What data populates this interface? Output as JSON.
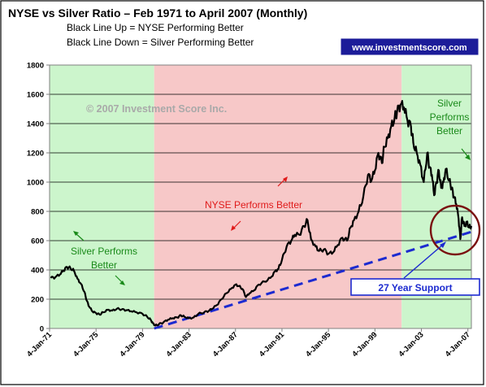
{
  "chart_data": {
    "type": "line",
    "title": "NYSE vs Silver Ratio – Feb 1971 to April 2007 (Monthly)",
    "subtitle_lines": [
      "Black Line Up = NYSE Performing Better",
      "Black Line Down = Silver Performing Better"
    ],
    "brand": "www.investmentscore.com",
    "copyright": "© 2007 Investment Score Inc.",
    "x_start_year": 1971,
    "x_end_year": 2007.3,
    "x_tick_labels": [
      "4-Jan-71",
      "4-Jan-75",
      "4-Jan-79",
      "4-Jan-83",
      "4-Jan-87",
      "4-Jan-91",
      "4-Jan-95",
      "4-Jan-99",
      "4-Jan-03",
      "4-Jan-07"
    ],
    "x_tick_years": [
      1971,
      1975,
      1979,
      1983,
      1987,
      1991,
      1995,
      1999,
      2003,
      2007
    ],
    "ylim": [
      0,
      1800
    ],
    "y_ticks": [
      0,
      200,
      400,
      600,
      800,
      1000,
      1200,
      1400,
      1600,
      1800
    ],
    "grid": true,
    "series": [
      {
        "color": "#000000",
        "points": [
          [
            1971.1,
            345
          ],
          [
            1971.5,
            350
          ],
          [
            1971.9,
            370
          ],
          [
            1972.2,
            395
          ],
          [
            1972.5,
            420
          ],
          [
            1972.8,
            412
          ],
          [
            1973.1,
            395
          ],
          [
            1973.4,
            340
          ],
          [
            1973.7,
            305
          ],
          [
            1974.0,
            250
          ],
          [
            1974.2,
            190
          ],
          [
            1974.4,
            150
          ],
          [
            1974.7,
            115
          ],
          [
            1975.0,
            105
          ],
          [
            1975.3,
            95
          ],
          [
            1975.6,
            110
          ],
          [
            1976.0,
            128
          ],
          [
            1976.4,
            122
          ],
          [
            1976.8,
            135
          ],
          [
            1977.2,
            130
          ],
          [
            1977.6,
            125
          ],
          [
            1978.0,
            118
          ],
          [
            1978.5,
            110
          ],
          [
            1979.0,
            100
          ],
          [
            1979.4,
            80
          ],
          [
            1979.7,
            60
          ],
          [
            1979.9,
            35
          ],
          [
            1980.1,
            20
          ],
          [
            1980.4,
            28
          ],
          [
            1980.8,
            42
          ],
          [
            1981.2,
            60
          ],
          [
            1981.6,
            70
          ],
          [
            1982.0,
            75
          ],
          [
            1982.3,
            90
          ],
          [
            1982.6,
            80
          ],
          [
            1983.0,
            70
          ],
          [
            1983.4,
            75
          ],
          [
            1983.8,
            100
          ],
          [
            1984.3,
            110
          ],
          [
            1984.7,
            120
          ],
          [
            1985.0,
            135
          ],
          [
            1985.4,
            160
          ],
          [
            1985.8,
            200
          ],
          [
            1986.2,
            240
          ],
          [
            1986.6,
            270
          ],
          [
            1987.0,
            300
          ],
          [
            1987.3,
            290
          ],
          [
            1987.6,
            270
          ],
          [
            1987.9,
            215
          ],
          [
            1988.2,
            240
          ],
          [
            1988.6,
            260
          ],
          [
            1989.0,
            300
          ],
          [
            1989.5,
            320
          ],
          [
            1990.0,
            345
          ],
          [
            1990.4,
            390
          ],
          [
            1990.7,
            410
          ],
          [
            1991.0,
            470
          ],
          [
            1991.4,
            560
          ],
          [
            1991.8,
            600
          ],
          [
            1992.1,
            640
          ],
          [
            1992.5,
            640
          ],
          [
            1992.9,
            700
          ],
          [
            1993.2,
            740
          ],
          [
            1993.5,
            610
          ],
          [
            1993.9,
            560
          ],
          [
            1994.2,
            530
          ],
          [
            1994.6,
            540
          ],
          [
            1995.0,
            510
          ],
          [
            1995.4,
            520
          ],
          [
            1995.8,
            570
          ],
          [
            1996.2,
            620
          ],
          [
            1996.6,
            600
          ],
          [
            1996.9,
            690
          ],
          [
            1997.2,
            740
          ],
          [
            1997.6,
            800
          ],
          [
            1998.0,
            900
          ],
          [
            1998.4,
            1050
          ],
          [
            1998.7,
            1010
          ],
          [
            1999.0,
            1080
          ],
          [
            1999.3,
            1200
          ],
          [
            1999.6,
            1130
          ],
          [
            1999.8,
            1240
          ],
          [
            2000.1,
            1300
          ],
          [
            2000.4,
            1380
          ],
          [
            2000.7,
            1440
          ],
          [
            2000.9,
            1480
          ],
          [
            2001.2,
            1530
          ],
          [
            2001.5,
            1510
          ],
          [
            2001.8,
            1420
          ],
          [
            2002.1,
            1380
          ],
          [
            2002.3,
            1270
          ],
          [
            2002.6,
            1200
          ],
          [
            2002.9,
            1120
          ],
          [
            2003.2,
            1000
          ],
          [
            2003.5,
            1200
          ],
          [
            2003.7,
            1100
          ],
          [
            2003.9,
            1050
          ],
          [
            2004.1,
            910
          ],
          [
            2004.3,
            1000
          ],
          [
            2004.5,
            1080
          ],
          [
            2004.7,
            960
          ],
          [
            2004.9,
            1000
          ],
          [
            2005.1,
            1090
          ],
          [
            2005.4,
            1010
          ],
          [
            2005.6,
            960
          ],
          [
            2005.8,
            900
          ],
          [
            2006.0,
            850
          ],
          [
            2006.2,
            750
          ],
          [
            2006.35,
            610
          ],
          [
            2006.5,
            760
          ],
          [
            2006.7,
            700
          ],
          [
            2006.9,
            730
          ],
          [
            2007.1,
            690
          ],
          [
            2007.3,
            700
          ]
        ]
      }
    ],
    "support_line": {
      "points": [
        [
          1980.0,
          0
        ],
        [
          2007.3,
          660
        ]
      ],
      "color": "#1d2bd0",
      "label": "27 Year Support"
    },
    "bands": [
      {
        "from": 1971,
        "to": 1980,
        "color": "#ccf5cc"
      },
      {
        "from": 1980,
        "to": 2001.3,
        "color": "#f7c8c8"
      },
      {
        "from": 2001.3,
        "to": 2007.3,
        "color": "#ccf5cc"
      }
    ],
    "annotations": [
      {
        "text_lines": [
          "Silver Performs",
          "Better"
        ],
        "color": "#1a8a1a"
      },
      {
        "text_lines": [
          "NYSE Performs Better"
        ],
        "color": "#e01b1b"
      },
      {
        "text_lines": [
          "Silver",
          "Performs",
          "Better"
        ],
        "color": "#1a8a1a"
      }
    ],
    "highlight_circle_color": "#7a1010"
  }
}
